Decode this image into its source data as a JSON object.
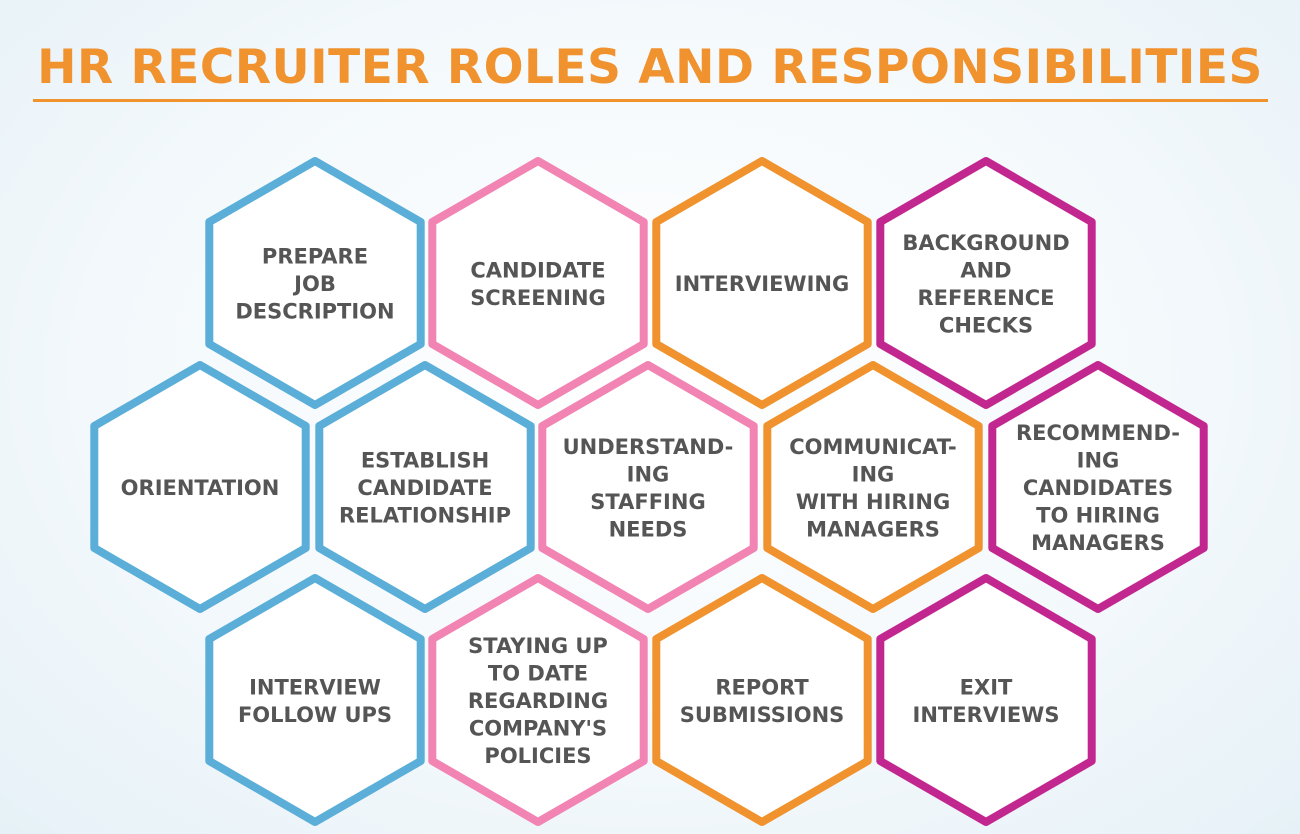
{
  "title": "HR RECRUITER ROLES AND RESPONSIBILITIES",
  "colors": {
    "title": "#f0922e",
    "blue": "#5aaed8",
    "pink": "#f184b3",
    "orange": "#f0922e",
    "magenta": "#c2268f",
    "label": "#555555"
  },
  "hexagons": [
    {
      "id": "prepare-job-description",
      "color": "blue",
      "lines": [
        "PREPARE",
        "JOB",
        "DESCRIPTION"
      ]
    },
    {
      "id": "candidate-screening",
      "color": "pink",
      "lines": [
        "CANDIDATE",
        "SCREENING"
      ]
    },
    {
      "id": "interviewing",
      "color": "orange",
      "lines": [
        "INTERVIEWING"
      ]
    },
    {
      "id": "background-reference-checks",
      "color": "magenta",
      "lines": [
        "BACKGROUND",
        "AND",
        "REFERENCE",
        "CHECKS"
      ]
    },
    {
      "id": "orientation",
      "color": "blue",
      "lines": [
        "ORIENTATION"
      ]
    },
    {
      "id": "establish-candidate-relationship",
      "color": "blue",
      "lines": [
        "ESTABLISH",
        "CANDIDATE",
        "RELATIONSHIP"
      ]
    },
    {
      "id": "understanding-staffing-needs",
      "color": "pink",
      "lines": [
        "UNDERSTAND-",
        "ING",
        "STAFFING",
        "NEEDS"
      ]
    },
    {
      "id": "communicating-with-hiring-managers",
      "color": "orange",
      "lines": [
        "COMMUNICAT-",
        "ING",
        "WITH HIRING",
        "MANAGERS"
      ]
    },
    {
      "id": "recommending-candidates",
      "color": "magenta",
      "lines": [
        "RECOMMEND-",
        "ING",
        "CANDIDATES",
        "TO HIRING",
        "MANAGERS"
      ]
    },
    {
      "id": "interview-follow-ups",
      "color": "blue",
      "lines": [
        "INTERVIEW",
        "FOLLOW UPS"
      ]
    },
    {
      "id": "staying-up-to-date",
      "color": "pink",
      "lines": [
        "STAYING UP",
        "TO DATE",
        "REGARDING",
        "COMPANY'S",
        "POLICIES"
      ]
    },
    {
      "id": "report-submissions",
      "color": "orange",
      "lines": [
        "REPORT",
        "SUBMISSIONS"
      ]
    },
    {
      "id": "exit-interviews",
      "color": "magenta",
      "lines": [
        "EXIT",
        "INTERVIEWS"
      ]
    }
  ]
}
